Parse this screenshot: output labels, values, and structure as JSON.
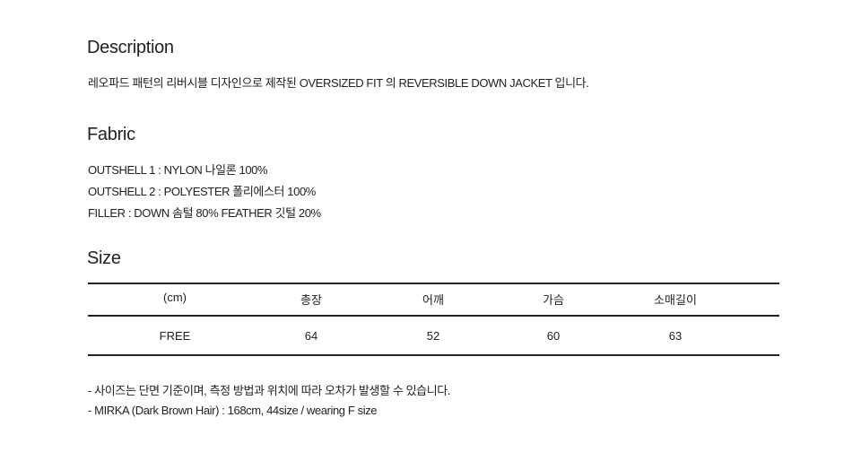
{
  "description": {
    "heading": "Description",
    "text": "레오파드 패턴의 리버시블 디자인으로 제작된 OVERSIZED FIT 의 REVERSIBLE DOWN JACKET 입니다."
  },
  "fabric": {
    "heading": "Fabric",
    "lines": [
      "OUTSHELL 1 : NYLON 나일론 100%",
      "OUTSHELL 2 : POLYESTER 폴리에스터 100%",
      "FILLER : DOWN 솜털 80%  FEATHER 깃털 20%"
    ]
  },
  "size": {
    "heading": "Size",
    "headers": [
      "(cm)",
      "총장",
      "어깨",
      "가슴",
      "소매길이"
    ],
    "rows": [
      [
        "FREE",
        "64",
        "52",
        "60",
        "63"
      ]
    ]
  },
  "notes": [
    "- 사이즈는 단면 기준이며, 측정 방법과 위치에 따라 오차가 발생할 수 있습니다.",
    "- MIRKA (Dark Brown Hair) : 168cm, 44size / wearing F size"
  ]
}
